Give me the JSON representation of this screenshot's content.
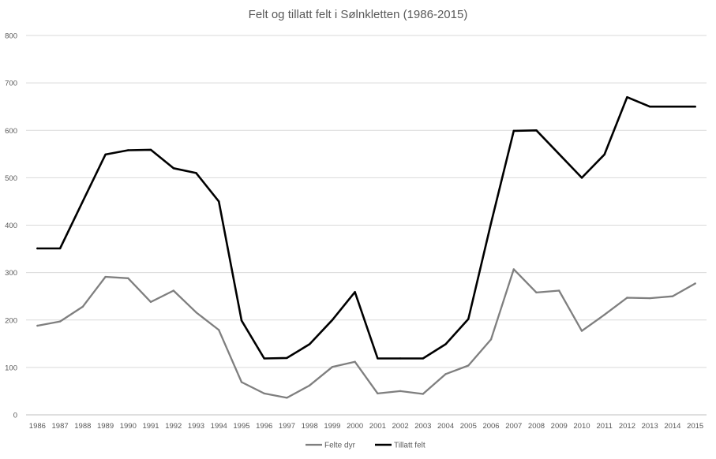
{
  "chart_data": {
    "type": "line",
    "title": "Felt og tillatt  felt i Sølnkletten (1986-2015)",
    "xlabel": "",
    "ylabel": "",
    "ylim": [
      0,
      800
    ],
    "yticks": [
      0,
      100,
      200,
      300,
      400,
      500,
      600,
      700,
      800
    ],
    "grid": true,
    "legend_position": "bottom",
    "categories": [
      "1986",
      "1987",
      "1988",
      "1989",
      "1990",
      "1991",
      "1992",
      "1993",
      "1994",
      "1995",
      "1996",
      "1997",
      "1998",
      "1999",
      "2000",
      "2001",
      "2002",
      "2003",
      "2004",
      "2005",
      "2006",
      "2007",
      "2008",
      "2009",
      "2010",
      "2011",
      "2012",
      "2013",
      "2014",
      "2015"
    ],
    "series": [
      {
        "name": "Felte dyr",
        "color": "#7f7f7f",
        "values": [
          188,
          197,
          228,
          291,
          288,
          238,
          262,
          216,
          179,
          69,
          45,
          36,
          62,
          101,
          112,
          45,
          50,
          44,
          86,
          104,
          159,
          307,
          258,
          262,
          177,
          211,
          247,
          246,
          250,
          277
        ]
      },
      {
        "name": "Tillatt felt",
        "color": "#000000",
        "values": [
          351,
          351,
          450,
          549,
          558,
          559,
          520,
          510,
          450,
          199,
          119,
          120,
          149,
          200,
          259,
          119,
          119,
          119,
          149,
          202,
          404,
          599,
          600,
          550,
          500,
          549,
          670,
          650,
          650,
          650
        ]
      }
    ]
  }
}
